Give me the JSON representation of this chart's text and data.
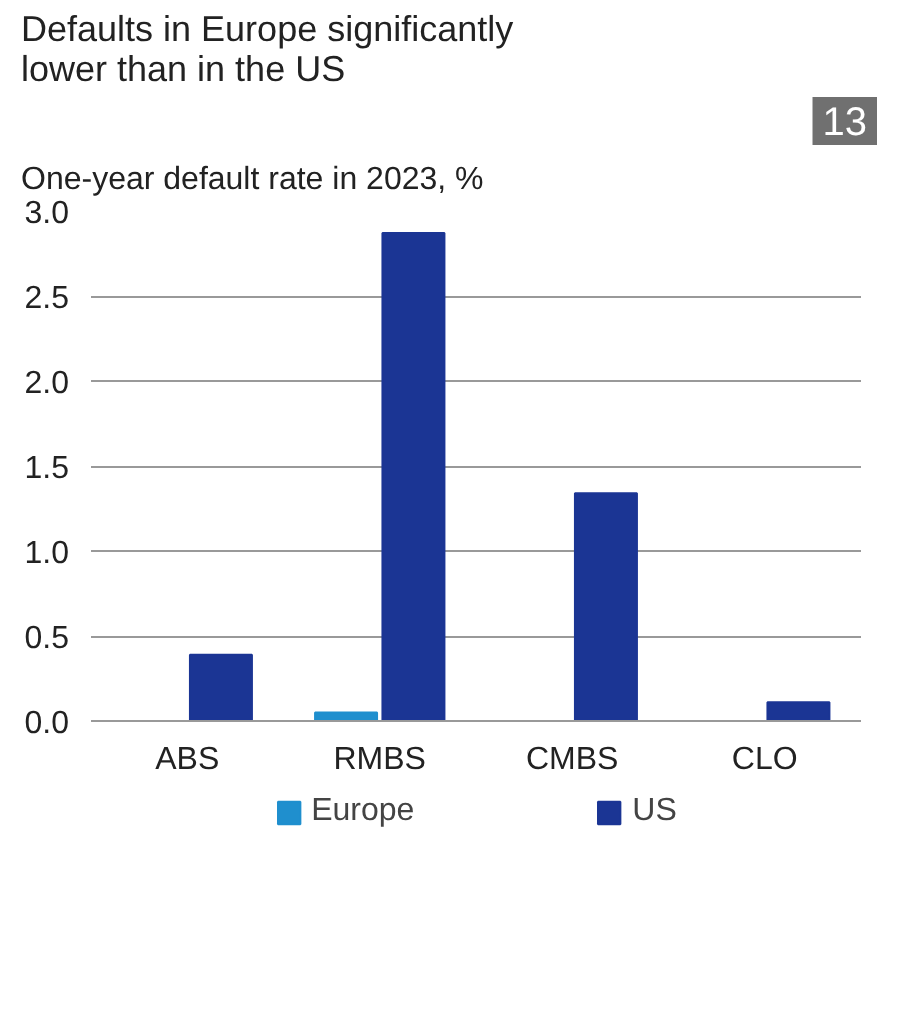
{
  "chart_data": {
    "type": "bar",
    "title": "Defaults in Europe significantly lower than in the US",
    "subtitle": "One-year default rate in 2023, %",
    "annotations": [
      "13"
    ],
    "categories": [
      "ABS",
      "RMBS",
      "CMBS",
      "CLO"
    ],
    "series": [
      {
        "name": "Europe",
        "color": "#1f8fce",
        "values": [
          0,
          0.05,
          0,
          0
        ]
      },
      {
        "name": "US",
        "color": "#1b3594",
        "values": [
          0.39,
          2.87,
          1.34,
          0.11
        ]
      }
    ],
    "ylim": [
      0,
      3.0
    ],
    "yticks": [
      {
        "value": 0,
        "label": "0.0"
      },
      0.5,
      {
        "value": 1,
        "label": "1.0"
      },
      1.5,
      {
        "value": 2,
        "label": "2.0"
      },
      2.5,
      {
        "value": 3,
        "label": "3.0"
      }
    ],
    "grid": "y",
    "legend": "bottom"
  }
}
